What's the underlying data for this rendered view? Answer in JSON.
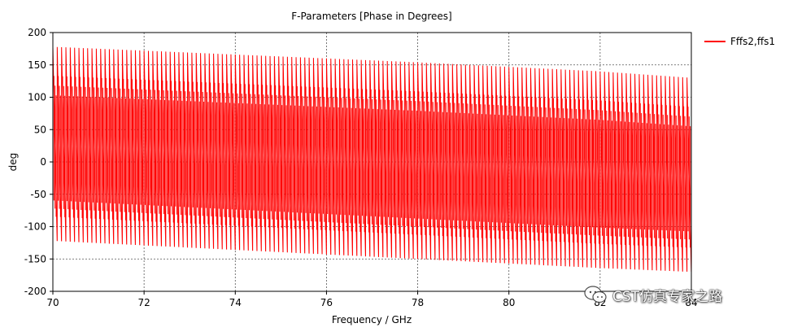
{
  "chart_data": {
    "type": "line",
    "title": "F-Parameters [Phase in Degrees]",
    "xlabel": "Frequency / GHz",
    "ylabel": "deg",
    "xlim": [
      70,
      84
    ],
    "ylim": [
      -200,
      200
    ],
    "xticks": [
      70,
      72,
      74,
      76,
      78,
      80,
      82,
      84
    ],
    "yticks": [
      -200,
      -150,
      -100,
      -50,
      0,
      50,
      100,
      150,
      200
    ],
    "grid": true,
    "legend_position": "top-right",
    "series": [
      {
        "name": "Fffs2,ffs1",
        "color": "#ff0000",
        "pattern": "wrapped phase, rapidly cycling",
        "upper_envelope_deg": [
          [
            70,
            178
          ],
          [
            72,
            172
          ],
          [
            74,
            166
          ],
          [
            76,
            160
          ],
          [
            78,
            154
          ],
          [
            80,
            147
          ],
          [
            82,
            140
          ],
          [
            84,
            130
          ]
        ],
        "lower_envelope_deg": [
          [
            70,
            -122
          ],
          [
            72,
            -129
          ],
          [
            74,
            -136
          ],
          [
            76,
            -143
          ],
          [
            78,
            -150
          ],
          [
            80,
            -157
          ],
          [
            82,
            -164
          ],
          [
            84,
            -170
          ]
        ],
        "cycles_per_ghz": 10.5
      }
    ]
  },
  "watermark": {
    "text": "CST仿真专家之路"
  }
}
